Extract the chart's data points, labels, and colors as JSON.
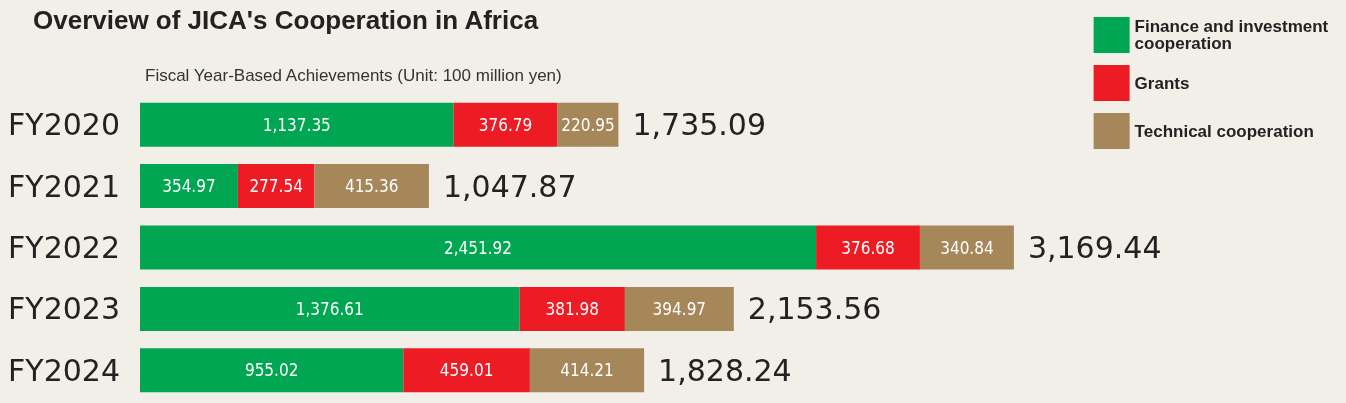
{
  "chart_data": {
    "type": "bar",
    "orientation": "horizontal",
    "stacked": true,
    "title": "Overview of JICA's Cooperation in Africa",
    "subtitle": "Fiscal Year-Based Achievements (Unit: 100 million yen)",
    "legend": "top right",
    "categories": [
      "FY2020",
      "FY2021",
      "FY2022",
      "FY2023",
      "FY2024"
    ],
    "series": [
      {
        "name": "Finance and investment cooperation",
        "color": "#00a651",
        "values": [
          1137.35,
          354.97,
          2451.92,
          1376.61,
          955.02
        ],
        "value_labels": [
          "1,137.35",
          "354.97",
          "2,451.92",
          "1,376.61",
          "955.02"
        ]
      },
      {
        "name": "Grants",
        "color": "#ed1c24",
        "values": [
          376.79,
          277.54,
          376.68,
          381.98,
          459.01
        ],
        "value_labels": [
          "376.79",
          "277.54",
          "376.68",
          "381.98",
          "459.01"
        ]
      },
      {
        "name": "Technical cooperation",
        "color": "#a6875a",
        "values": [
          220.95,
          415.36,
          340.84,
          394.97,
          414.21
        ],
        "value_labels": [
          "220.95",
          "415.36",
          "340.84",
          "394.97",
          "414.21"
        ]
      }
    ],
    "totals": [
      "1,735.09",
      "1,047.87",
      "3,169.44",
      "2,153.56",
      "1,828.24"
    ]
  }
}
